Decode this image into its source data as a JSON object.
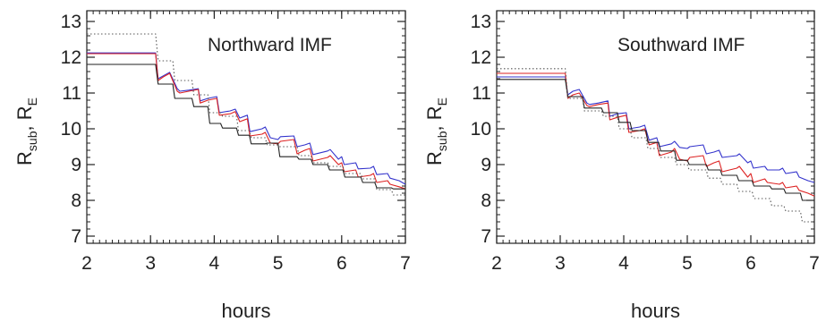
{
  "chart_data": [
    {
      "type": "line",
      "title": "Northward IMF",
      "xlabel": "hours",
      "ylabel_main": "R",
      "ylabel_sub1": "sub",
      "ylabel_sep": ", R",
      "ylabel_sub2": "E",
      "xlim": [
        2,
        7
      ],
      "ylim": [
        6.8,
        13.3
      ],
      "xticks": [
        2,
        3,
        4,
        5,
        6,
        7
      ],
      "yticks": [
        7,
        8,
        9,
        10,
        11,
        12,
        13
      ],
      "series": [
        {
          "color": "#3333cc",
          "style": "solid",
          "x": [
            2.0,
            3.08,
            3.12,
            3.2,
            3.3,
            3.42,
            3.46,
            3.6,
            3.75,
            3.78,
            3.9,
            4.04,
            4.08,
            4.25,
            4.33,
            4.4,
            4.52,
            4.56,
            4.75,
            4.8,
            4.88,
            5.0,
            5.04,
            5.25,
            5.3,
            5.42,
            5.5,
            5.55,
            5.78,
            5.82,
            5.95,
            6.0,
            6.04,
            6.22,
            6.26,
            6.45,
            6.5,
            6.55,
            6.72,
            6.76,
            6.9,
            7.0
          ],
          "y": [
            12.12,
            12.12,
            11.4,
            11.48,
            11.58,
            11.12,
            11.05,
            11.08,
            11.12,
            10.78,
            10.85,
            10.9,
            10.45,
            10.5,
            10.55,
            10.3,
            10.38,
            9.92,
            10.0,
            10.05,
            9.75,
            9.7,
            9.78,
            9.8,
            9.5,
            9.55,
            9.6,
            9.28,
            9.38,
            9.42,
            9.15,
            9.22,
            9.0,
            9.05,
            8.88,
            8.9,
            8.95,
            8.72,
            8.75,
            8.62,
            8.55,
            8.45
          ]
        },
        {
          "color": "#dd2222",
          "style": "solid",
          "x": [
            2.0,
            3.08,
            3.12,
            3.2,
            3.3,
            3.42,
            3.46,
            3.6,
            3.75,
            3.78,
            3.9,
            4.04,
            4.08,
            4.25,
            4.33,
            4.4,
            4.52,
            4.56,
            4.75,
            4.8,
            4.88,
            5.0,
            5.04,
            5.25,
            5.3,
            5.42,
            5.5,
            5.55,
            5.78,
            5.82,
            5.95,
            6.0,
            6.04,
            6.22,
            6.26,
            6.45,
            6.5,
            6.55,
            6.72,
            6.76,
            6.9,
            7.0
          ],
          "y": [
            12.1,
            12.1,
            11.35,
            11.45,
            11.55,
            11.05,
            11.0,
            11.05,
            11.1,
            10.72,
            10.8,
            10.85,
            10.38,
            10.42,
            10.48,
            10.2,
            10.28,
            9.8,
            9.85,
            9.9,
            9.6,
            9.58,
            9.65,
            9.7,
            9.3,
            9.4,
            9.45,
            9.1,
            9.2,
            9.25,
            9.0,
            9.05,
            8.8,
            8.85,
            8.65,
            8.7,
            8.75,
            8.5,
            8.55,
            8.45,
            8.38,
            8.32
          ]
        },
        {
          "color": "#222222",
          "style": "solid",
          "x": [
            2.0,
            3.08,
            3.12,
            3.35,
            3.38,
            3.65,
            3.68,
            3.9,
            3.93,
            4.1,
            4.13,
            4.35,
            4.38,
            4.55,
            4.58,
            4.8,
            4.83,
            5.0,
            5.03,
            5.3,
            5.33,
            5.52,
            5.55,
            5.78,
            5.81,
            6.02,
            6.05,
            6.3,
            6.33,
            6.52,
            6.55,
            6.78,
            6.81,
            7.0
          ],
          "y": [
            11.8,
            11.8,
            11.25,
            11.25,
            10.85,
            10.85,
            10.62,
            10.62,
            10.15,
            10.15,
            10.02,
            10.02,
            9.82,
            9.82,
            9.58,
            9.58,
            9.6,
            9.6,
            9.22,
            9.22,
            9.15,
            9.15,
            9.0,
            9.0,
            8.85,
            8.85,
            8.65,
            8.65,
            8.5,
            8.5,
            8.35,
            8.35,
            8.32,
            8.32
          ]
        },
        {
          "color": "#555555",
          "style": "dotted",
          "x": [
            2.0,
            3.08,
            3.12,
            3.35,
            3.38,
            3.65,
            3.68,
            3.9,
            3.93,
            4.1,
            4.13,
            4.35,
            4.38,
            4.55,
            4.58,
            4.8,
            4.83,
            5.0,
            5.03,
            5.3,
            5.33,
            5.52,
            5.55,
            5.78,
            5.81,
            6.02,
            6.05,
            6.3,
            6.33,
            6.52,
            6.55,
            6.78,
            6.81,
            7.0
          ],
          "y": [
            12.65,
            12.65,
            11.9,
            11.9,
            11.35,
            11.35,
            10.95,
            10.95,
            10.45,
            10.45,
            10.35,
            10.35,
            9.95,
            9.95,
            9.75,
            9.75,
            9.55,
            9.55,
            9.5,
            9.5,
            9.25,
            9.25,
            9.05,
            9.05,
            8.95,
            8.95,
            8.75,
            8.75,
            8.6,
            8.6,
            8.3,
            8.3,
            8.15,
            8.15
          ]
        }
      ]
    },
    {
      "type": "line",
      "title": "Southward IMF",
      "xlabel": "hours",
      "ylabel_main": "R",
      "ylabel_sub1": "sub",
      "ylabel_sep": ", R",
      "ylabel_sub2": "E",
      "xlim": [
        2,
        7
      ],
      "ylim": [
        6.8,
        13.3
      ],
      "xticks": [
        2,
        3,
        4,
        5,
        6,
        7
      ],
      "yticks": [
        7,
        8,
        9,
        10,
        11,
        12,
        13
      ],
      "series": [
        {
          "color": "#3333cc",
          "style": "solid",
          "x": [
            2.0,
            3.08,
            3.12,
            3.2,
            3.3,
            3.42,
            3.46,
            3.6,
            3.75,
            3.78,
            3.9,
            4.04,
            4.08,
            4.25,
            4.33,
            4.4,
            4.52,
            4.56,
            4.75,
            4.8,
            4.88,
            5.0,
            5.04,
            5.25,
            5.3,
            5.42,
            5.5,
            5.55,
            5.78,
            5.82,
            5.95,
            6.0,
            6.04,
            6.22,
            6.26,
            6.45,
            6.5,
            6.55,
            6.72,
            6.76,
            6.9,
            7.0
          ],
          "y": [
            11.45,
            11.45,
            10.95,
            11.05,
            11.1,
            10.72,
            10.68,
            10.72,
            10.78,
            10.35,
            10.42,
            10.45,
            10.0,
            10.05,
            10.1,
            9.68,
            9.75,
            9.5,
            9.58,
            9.65,
            9.48,
            9.45,
            9.5,
            9.55,
            9.3,
            9.35,
            9.4,
            9.2,
            9.25,
            9.3,
            9.05,
            9.1,
            8.9,
            8.95,
            8.85,
            8.85,
            8.9,
            8.75,
            8.8,
            8.65,
            8.55,
            8.5
          ]
        },
        {
          "color": "#dd2222",
          "style": "solid",
          "x": [
            2.0,
            3.08,
            3.12,
            3.2,
            3.3,
            3.42,
            3.46,
            3.6,
            3.75,
            3.78,
            3.9,
            4.04,
            4.08,
            4.25,
            4.33,
            4.4,
            4.52,
            4.56,
            4.75,
            4.8,
            4.88,
            5.0,
            5.04,
            5.25,
            5.3,
            5.42,
            5.5,
            5.55,
            5.78,
            5.82,
            5.95,
            6.0,
            6.04,
            6.22,
            6.26,
            6.45,
            6.5,
            6.55,
            6.72,
            6.76,
            6.9,
            7.0
          ],
          "y": [
            11.55,
            11.55,
            10.85,
            10.95,
            11.0,
            10.65,
            10.62,
            10.68,
            10.72,
            10.25,
            10.32,
            10.38,
            9.9,
            9.95,
            10.0,
            9.55,
            9.62,
            9.25,
            9.35,
            9.45,
            9.15,
            9.1,
            9.2,
            9.25,
            8.95,
            9.05,
            9.1,
            8.8,
            8.9,
            8.95,
            8.65,
            8.75,
            8.5,
            8.6,
            8.5,
            8.45,
            8.5,
            8.35,
            8.4,
            8.28,
            8.2,
            8.12
          ]
        },
        {
          "color": "#222222",
          "style": "solid",
          "x": [
            2.0,
            3.08,
            3.12,
            3.35,
            3.38,
            3.65,
            3.68,
            3.9,
            3.93,
            4.1,
            4.13,
            4.35,
            4.38,
            4.55,
            4.58,
            4.8,
            4.83,
            5.0,
            5.03,
            5.3,
            5.33,
            5.52,
            5.55,
            5.78,
            5.81,
            6.02,
            6.05,
            6.3,
            6.33,
            6.52,
            6.55,
            6.78,
            6.81,
            7.0
          ],
          "y": [
            11.38,
            11.38,
            10.9,
            10.9,
            10.58,
            10.58,
            10.45,
            10.45,
            10.18,
            10.18,
            9.95,
            9.95,
            9.62,
            9.62,
            9.38,
            9.38,
            9.12,
            9.12,
            9.0,
            9.0,
            8.85,
            8.85,
            8.7,
            8.7,
            8.55,
            8.55,
            8.4,
            8.4,
            8.32,
            8.32,
            8.2,
            8.2,
            8.0,
            8.0
          ]
        },
        {
          "color": "#555555",
          "style": "dotted",
          "x": [
            2.0,
            3.08,
            3.12,
            3.35,
            3.38,
            3.65,
            3.68,
            3.9,
            3.93,
            4.1,
            4.13,
            4.35,
            4.38,
            4.55,
            4.58,
            4.8,
            4.83,
            5.0,
            5.03,
            5.3,
            5.33,
            5.52,
            5.55,
            5.78,
            5.81,
            6.02,
            6.05,
            6.3,
            6.33,
            6.52,
            6.55,
            6.78,
            6.81,
            7.0
          ],
          "y": [
            11.68,
            11.68,
            10.85,
            10.85,
            10.5,
            10.5,
            10.35,
            10.35,
            10.0,
            10.0,
            9.75,
            9.75,
            9.45,
            9.45,
            9.2,
            9.2,
            9.0,
            9.0,
            8.85,
            8.85,
            8.62,
            8.62,
            8.45,
            8.45,
            8.25,
            8.25,
            8.05,
            8.05,
            7.85,
            7.85,
            7.7,
            7.7,
            7.4,
            7.4
          ]
        }
      ]
    }
  ]
}
